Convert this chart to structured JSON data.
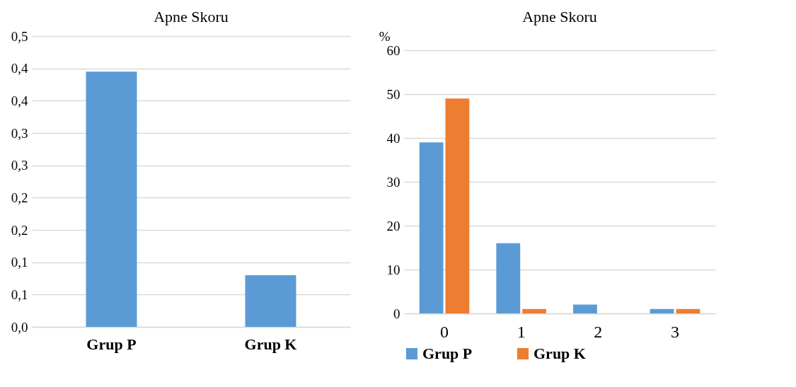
{
  "chart_data": [
    {
      "type": "bar",
      "title": "Apne Skoru",
      "categories": [
        "Grup P",
        "Grup K"
      ],
      "values": [
        0.395,
        0.08
      ],
      "color": "#5b9bd5",
      "ylim": [
        0,
        0.45
      ],
      "yticks": [
        {
          "value": 0,
          "label": "0,0"
        },
        {
          "value": 0.05,
          "label": "0,1"
        },
        {
          "value": 0.1,
          "label": "0,1"
        },
        {
          "value": 0.15,
          "label": "0,2"
        },
        {
          "value": 0.2,
          "label": "0,2"
        },
        {
          "value": 0.25,
          "label": "0,3"
        },
        {
          "value": 0.3,
          "label": "0,3"
        },
        {
          "value": 0.35,
          "label": "0,4"
        },
        {
          "value": 0.4,
          "label": "0,4"
        },
        {
          "value": 0.45,
          "label": "0,5"
        }
      ],
      "grid": true
    },
    {
      "type": "bar",
      "title": "Apne Skoru",
      "ylabel": "%",
      "categories": [
        "0",
        "1",
        "2",
        "3"
      ],
      "series": [
        {
          "name": "Grup P",
          "color": "#5b9bd5",
          "values": [
            39,
            16,
            2,
            1
          ]
        },
        {
          "name": "Grup K",
          "color": "#ed7d31",
          "values": [
            49,
            1,
            0,
            1
          ]
        }
      ],
      "ylim": [
        0,
        60
      ],
      "yticks": [
        0,
        10,
        20,
        30,
        40,
        50,
        60
      ],
      "grid": true,
      "legend": "bottom"
    }
  ]
}
